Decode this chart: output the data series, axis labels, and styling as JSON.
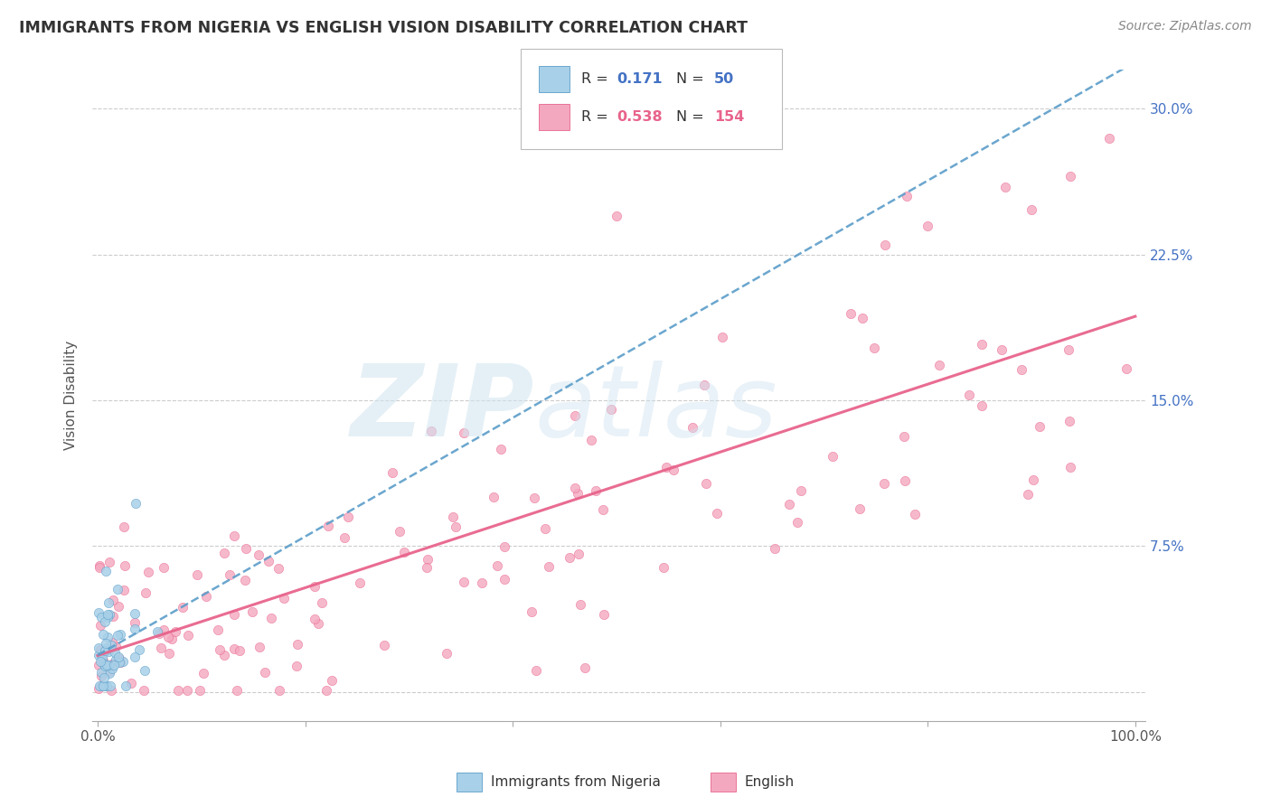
{
  "title": "IMMIGRANTS FROM NIGERIA VS ENGLISH VISION DISABILITY CORRELATION CHART",
  "source": "Source: ZipAtlas.com",
  "ylabel": "Vision Disability",
  "color_blue": "#A8D0E8",
  "color_pink": "#F4A8C0",
  "line_blue": "#5B9DC9",
  "line_pink": "#E8648C",
  "watermark_color": "#D0E4F0",
  "background": "#FFFFFF",
  "ytick_vals": [
    0.0,
    0.075,
    0.15,
    0.225,
    0.3
  ],
  "ytick_labels": [
    "",
    "7.5%",
    "15.0%",
    "22.5%",
    "30.0%"
  ],
  "xlim": [
    -0.005,
    1.01
  ],
  "ylim": [
    -0.015,
    0.32
  ]
}
